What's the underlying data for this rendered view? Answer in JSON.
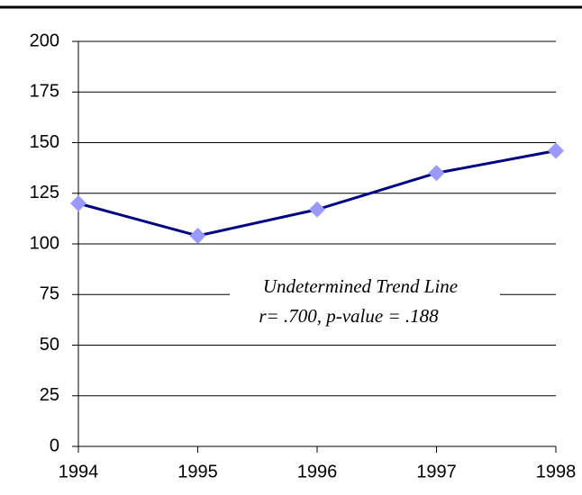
{
  "chart_data": {
    "type": "line",
    "categories": [
      "1994",
      "1995",
      "1996",
      "1997",
      "1998"
    ],
    "series": [
      {
        "color": "#000080",
        "marker_color": "#9999ff",
        "values": [
          120,
          104,
          117,
          135,
          146
        ]
      }
    ],
    "ylim": [
      0,
      200
    ],
    "yticks": [
      0,
      25,
      50,
      75,
      100,
      125,
      150,
      175,
      200
    ],
    "grid": true,
    "annotations": [
      "Undetermined Trend Line",
      "r= .700, p-value = .188"
    ]
  }
}
